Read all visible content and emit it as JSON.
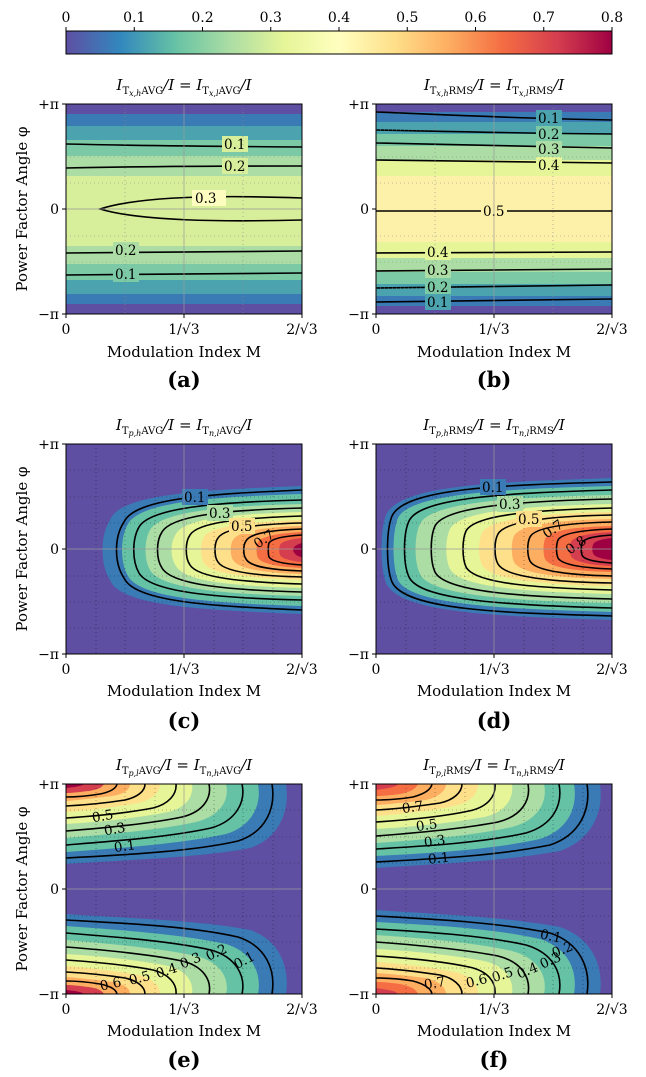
{
  "colorbar": {
    "colormap": "Spectral_r",
    "range": [
      0,
      0.8
    ],
    "ticks": [
      "0",
      "0.1",
      "0.2",
      "0.3",
      "0.4",
      "0.5",
      "0.6",
      "0.7",
      "0.8"
    ],
    "ramp": [
      "#5e4fa2",
      "#3288bd",
      "#66c2a5",
      "#abdda4",
      "#e6f598",
      "#ffffbf",
      "#fee08b",
      "#fdae61",
      "#f46d43",
      "#d53e4f",
      "#9e0142"
    ]
  },
  "axes": {
    "xlabel": "Modulation Index M",
    "ylabel": "Power Factor Angle φ",
    "xticks": [
      "0",
      "1/√3",
      "2/√3"
    ],
    "yticks": [
      "+π",
      "0",
      "−π"
    ],
    "xlim": [
      0,
      1.1547
    ],
    "ylim": [
      -3.1416,
      3.1416
    ]
  },
  "panels": [
    {
      "label": "(a)",
      "title": "I_{T x,h AVG}/I = I_{T x,l AVG}/I"
    },
    {
      "label": "(b)",
      "title": "I_{T x,h RMS}/I = I_{T x,l RMS}/I"
    },
    {
      "label": "(c)",
      "title": "I_{T p,h AVG}/I = I_{T n,l AVG}/I"
    },
    {
      "label": "(d)",
      "title": "I_{T p,h RMS}/I = I_{T n,l RMS}/I"
    },
    {
      "label": "(e)",
      "title": "I_{T p,l AVG}/I = I_{T n,h AVG}/I"
    },
    {
      "label": "(f)",
      "title": "I_{T p,l RMS}/I = I_{T n,h RMS}/I"
    }
  ],
  "chart_data": [
    {
      "type": "heatmap",
      "panel": "(a)",
      "x": "M",
      "y": "phi",
      "contour_labels": [
        "0.1",
        "0.2",
        "0.3",
        "0.2",
        "0.1"
      ],
      "value_range": [
        0,
        0.32
      ]
    },
    {
      "type": "heatmap",
      "panel": "(b)",
      "x": "M",
      "y": "phi",
      "contour_labels": [
        "0.1",
        "0.2",
        "0.3",
        "0.4",
        "0.5",
        "0.4",
        "0.3",
        "0.2",
        "0.1"
      ],
      "value_range": [
        0,
        0.5
      ]
    },
    {
      "type": "heatmap",
      "panel": "(c)",
      "x": "M",
      "y": "phi",
      "contour_labels": [
        "0.1",
        "0.3",
        "0.5",
        "0.7"
      ],
      "value_range": [
        0,
        0.8
      ]
    },
    {
      "type": "heatmap",
      "panel": "(d)",
      "x": "M",
      "y": "phi",
      "contour_labels": [
        "0.1",
        "0.3",
        "0.5",
        "0.7",
        "0.8"
      ],
      "value_range": [
        0,
        0.85
      ]
    },
    {
      "type": "heatmap",
      "panel": "(e)",
      "x": "M",
      "y": "phi",
      "contour_labels": [
        "0.5",
        "0.3",
        "0.1",
        "0.6",
        "0.5",
        "0.4",
        "0.3",
        "0.2",
        "0.1"
      ],
      "value_range": [
        0,
        0.8
      ]
    },
    {
      "type": "heatmap",
      "panel": "(f)",
      "x": "M",
      "y": "phi",
      "contour_labels": [
        "0.7",
        "0.5",
        "0.3",
        "0.1",
        "0.1",
        "0.2",
        "0.3",
        "0.4",
        "0.5",
        "0.6",
        "0.7"
      ],
      "value_range": [
        0,
        0.85
      ]
    }
  ]
}
